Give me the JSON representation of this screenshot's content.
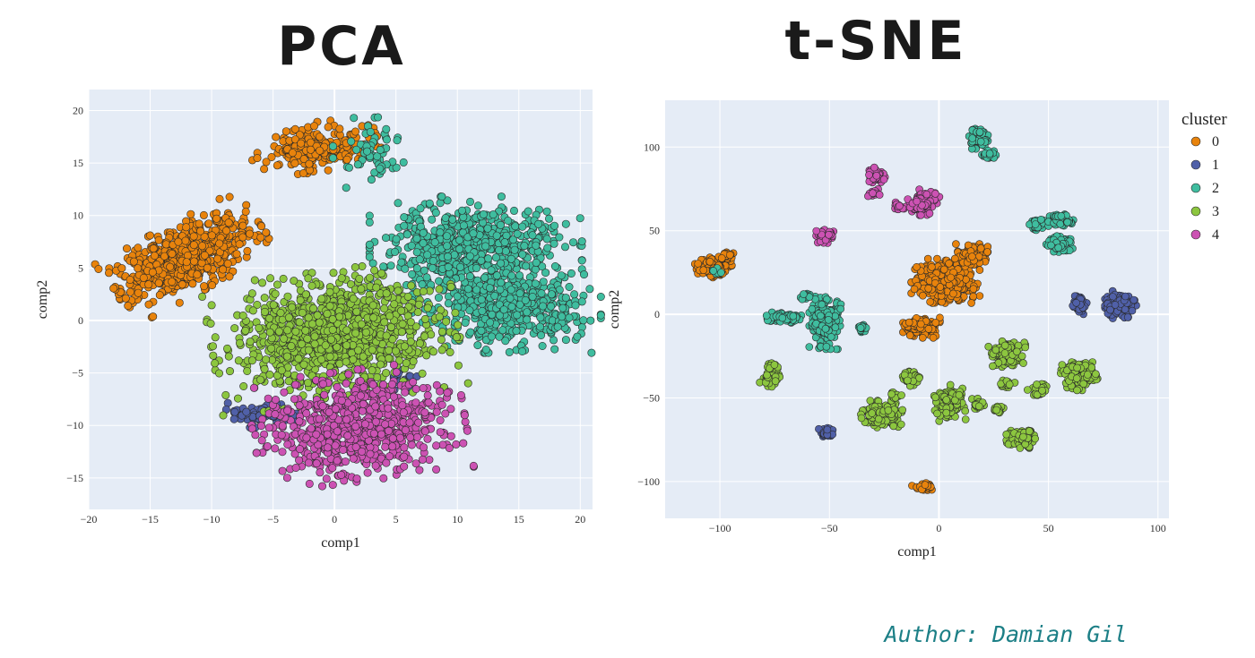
{
  "page": {
    "titles": {
      "pca": "PCA",
      "tsne": "t-SNE"
    },
    "author": "Author: Damian Gil"
  },
  "colors": {
    "background": "#ffffff",
    "plot_bg": "#e5ecf6",
    "grid": "#ffffff",
    "marker_edge": "#2a2a2a",
    "cluster": {
      "0": "#e8830c",
      "1": "#5060a8",
      "2": "#3fbd9f",
      "3": "#8cc63f",
      "4": "#cc52b3"
    }
  },
  "legend": {
    "title": "cluster",
    "items": [
      {
        "label": "0",
        "color": "#e8830c"
      },
      {
        "label": "1",
        "color": "#5060a8"
      },
      {
        "label": "2",
        "color": "#3fbd9f"
      },
      {
        "label": "3",
        "color": "#8cc63f"
      },
      {
        "label": "4",
        "color": "#cc52b3"
      }
    ]
  },
  "chart_data": [
    {
      "type": "scatter",
      "title": "PCA",
      "xlabel": "comp1",
      "ylabel": "comp2",
      "xlim": [
        -20,
        21
      ],
      "ylim": [
        -18,
        22
      ],
      "xticks": [
        -20,
        -15,
        -10,
        -5,
        0,
        5,
        10,
        15,
        20
      ],
      "yticks": [
        -15,
        -10,
        -5,
        0,
        5,
        10,
        15,
        20
      ],
      "xtick_labels": [
        "−20",
        "−15",
        "−10",
        "−5",
        "0",
        "5",
        "10",
        "15",
        "20"
      ],
      "ytick_labels": [
        "−15",
        "−10",
        "−5",
        "0",
        "5",
        "10",
        "15",
        "20"
      ],
      "series": [
        {
          "name": "0",
          "clusters": [
            {
              "cx": -12,
              "cy": 6,
              "sx": 2.8,
              "sy": 1.4,
              "rot": 0.55,
              "n": 650
            },
            {
              "cx": -1.5,
              "cy": 16.5,
              "sx": 2.2,
              "sy": 1.0,
              "rot": 0.1,
              "n": 220
            }
          ]
        },
        {
          "name": "1",
          "clusters": [
            {
              "cx": -6,
              "cy": -9,
              "sx": 1.2,
              "sy": 0.5,
              "rot": 0,
              "n": 70
            },
            {
              "cx": 5.5,
              "cy": -5.5,
              "sx": 0.5,
              "sy": 0.6,
              "rot": 0,
              "n": 20
            }
          ]
        },
        {
          "name": "2",
          "clusters": [
            {
              "cx": 11.5,
              "cy": 7.0,
              "sx": 3.6,
              "sy": 2.0,
              "rot": 0,
              "n": 650
            },
            {
              "cx": 14,
              "cy": 1.0,
              "sx": 3.2,
              "sy": 1.7,
              "rot": 0,
              "n": 450
            },
            {
              "cx": 3,
              "cy": 16,
              "sx": 1.3,
              "sy": 1.4,
              "rot": 0,
              "n": 60
            }
          ]
        },
        {
          "name": "3",
          "clusters": [
            {
              "cx": 0,
              "cy": -1.5,
              "sx": 4.2,
              "sy": 2.6,
              "rot": 0.15,
              "n": 1000
            }
          ]
        },
        {
          "name": "4",
          "clusters": [
            {
              "cx": 2,
              "cy": -10,
              "sx": 3.6,
              "sy": 2.2,
              "rot": 0.15,
              "n": 750
            }
          ]
        }
      ]
    },
    {
      "type": "scatter",
      "title": "t-SNE",
      "xlabel": "comp1",
      "ylabel": "comp2",
      "xlim": [
        -125,
        105
      ],
      "ylim": [
        -122,
        128
      ],
      "xticks": [
        -100,
        -50,
        0,
        50,
        100
      ],
      "yticks": [
        -100,
        -50,
        0,
        50,
        100
      ],
      "xtick_labels": [
        "−100",
        "−50",
        "0",
        "50",
        "100"
      ],
      "ytick_labels": [
        "−100",
        "−50",
        "0",
        "50",
        "100"
      ],
      "series": [
        {
          "name": "0",
          "clusters": [
            {
              "cx": -103,
              "cy": 28,
              "sx": 3.5,
              "sy": 2.5,
              "rot": 0,
              "n": 110
            },
            {
              "cx": -97,
              "cy": 35,
              "sx": 1.5,
              "sy": 1.2,
              "rot": 0,
              "n": 25
            },
            {
              "cx": 3,
              "cy": 20,
              "sx": 6.5,
              "sy": 5.5,
              "rot": 0,
              "n": 450
            },
            {
              "cx": 15,
              "cy": 36,
              "sx": 3.2,
              "sy": 2.5,
              "rot": 0,
              "n": 110
            },
            {
              "cx": -8,
              "cy": -8,
              "sx": 3.5,
              "sy": 2.5,
              "rot": 0,
              "n": 160
            },
            {
              "cx": -7,
              "cy": -103,
              "sx": 2.2,
              "sy": 1.3,
              "rot": 0,
              "n": 30
            }
          ]
        },
        {
          "name": "1",
          "clusters": [
            {
              "cx": 64,
              "cy": 6,
              "sx": 1.5,
              "sy": 2.5,
              "rot": 0,
              "n": 50
            },
            {
              "cx": 83,
              "cy": 6,
              "sx": 3.0,
              "sy": 3.5,
              "rot": 0,
              "n": 170
            },
            {
              "cx": -51,
              "cy": -71,
              "sx": 1.6,
              "sy": 1.6,
              "rot": 0,
              "n": 30
            }
          ]
        },
        {
          "name": "2",
          "clusters": [
            {
              "cx": 18,
              "cy": 105,
              "sx": 1.8,
              "sy": 2.5,
              "rot": 0,
              "n": 70
            },
            {
              "cx": 23,
              "cy": 95,
              "sx": 1.4,
              "sy": 1.2,
              "rot": 0,
              "n": 30
            },
            {
              "cx": 45,
              "cy": 54,
              "sx": 1.8,
              "sy": 1.5,
              "rot": 0,
              "n": 40
            },
            {
              "cx": 56,
              "cy": 56,
              "sx": 2.5,
              "sy": 2.0,
              "rot": 0,
              "n": 70
            },
            {
              "cx": 55,
              "cy": 42,
              "sx": 2.5,
              "sy": 2.0,
              "rot": 0,
              "n": 80
            },
            {
              "cx": -70,
              "cy": -2,
              "sx": 4.0,
              "sy": 1.5,
              "rot": 0,
              "n": 90
            },
            {
              "cx": -52,
              "cy": -4,
              "sx": 3.0,
              "sy": 7.0,
              "rot": 0,
              "n": 220
            },
            {
              "cx": -61,
              "cy": 11,
              "sx": 1.0,
              "sy": 1.2,
              "rot": 0,
              "n": 15
            },
            {
              "cx": -35,
              "cy": -9,
              "sx": 1.3,
              "sy": 1.4,
              "rot": 0,
              "n": 20
            },
            {
              "cx": -101,
              "cy": 25,
              "sx": 1.2,
              "sy": 1.2,
              "rot": 0,
              "n": 10
            }
          ]
        },
        {
          "name": "3",
          "clusters": [
            {
              "cx": -77,
              "cy": -39,
              "sx": 2.0,
              "sy": 1.8,
              "rot": 0,
              "n": 50
            },
            {
              "cx": -76,
              "cy": -31,
              "sx": 1.3,
              "sy": 1.0,
              "rot": 0,
              "n": 15
            },
            {
              "cx": -26,
              "cy": -60,
              "sx": 4.0,
              "sy": 3.5,
              "rot": 0,
              "n": 180
            },
            {
              "cx": -20,
              "cy": -49,
              "sx": 1.2,
              "sy": 1.0,
              "rot": 0,
              "n": 15
            },
            {
              "cx": -12,
              "cy": -38,
              "sx": 2.0,
              "sy": 2.0,
              "rot": 0,
              "n": 40
            },
            {
              "cx": 5,
              "cy": -53,
              "sx": 3.0,
              "sy": 4.5,
              "rot": 0,
              "n": 140
            },
            {
              "cx": 18,
              "cy": -54,
              "sx": 1.2,
              "sy": 1.6,
              "rot": 0,
              "n": 20
            },
            {
              "cx": 27,
              "cy": -57,
              "sx": 1.5,
              "sy": 1.2,
              "rot": 0,
              "n": 20
            },
            {
              "cx": 31,
              "cy": -23,
              "sx": 3.5,
              "sy": 3.5,
              "rot": 0,
              "n": 170
            },
            {
              "cx": 31,
              "cy": -41,
              "sx": 1.5,
              "sy": 1.4,
              "rot": 0,
              "n": 25
            },
            {
              "cx": 45,
              "cy": -45,
              "sx": 2.0,
              "sy": 2.0,
              "rot": 0,
              "n": 45
            },
            {
              "cx": 38,
              "cy": -74,
              "sx": 3.0,
              "sy": 2.5,
              "rot": 0,
              "n": 100
            },
            {
              "cx": 64,
              "cy": -37,
              "sx": 3.5,
              "sy": 3.5,
              "rot": 0,
              "n": 170
            }
          ]
        },
        {
          "name": "4",
          "clusters": [
            {
              "cx": -29,
              "cy": 83,
              "sx": 2.0,
              "sy": 2.0,
              "rot": 0,
              "n": 55
            },
            {
              "cx": -30,
              "cy": 72,
              "sx": 1.2,
              "sy": 1.2,
              "rot": 0,
              "n": 15
            },
            {
              "cx": -52,
              "cy": 47,
              "sx": 1.8,
              "sy": 2.0,
              "rot": 0,
              "n": 35
            },
            {
              "cx": -18,
              "cy": 65,
              "sx": 1.5,
              "sy": 1.4,
              "rot": 0,
              "n": 20
            },
            {
              "cx": -7,
              "cy": 67,
              "sx": 3.0,
              "sy": 3.2,
              "rot": 0,
              "n": 110
            }
          ]
        }
      ]
    }
  ]
}
